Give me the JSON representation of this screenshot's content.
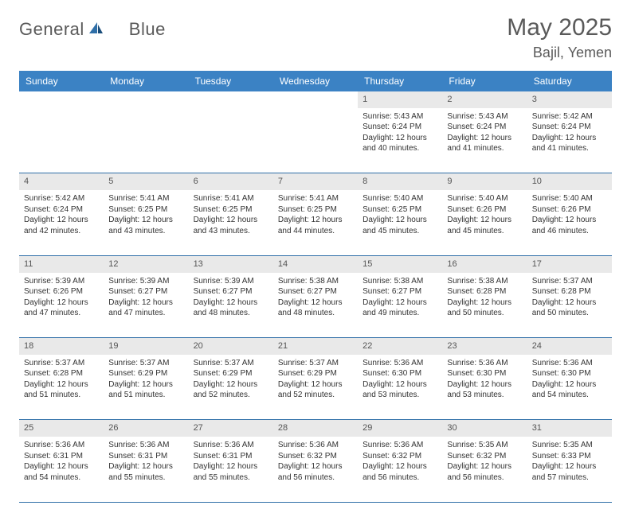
{
  "logo": {
    "text1": "General",
    "text2": "Blue"
  },
  "title": "May 2025",
  "location": "Bajil, Yemen",
  "colors": {
    "header_bg": "#3b82c4",
    "header_text": "#ffffff",
    "daynum_bg": "#e9e9e9",
    "row_border": "#2f6fa8",
    "body_text": "#333333",
    "title_text": "#5a5a5a"
  },
  "weekdays": [
    "Sunday",
    "Monday",
    "Tuesday",
    "Wednesday",
    "Thursday",
    "Friday",
    "Saturday"
  ],
  "weeks": [
    {
      "nums": [
        "",
        "",
        "",
        "",
        "1",
        "2",
        "3"
      ],
      "cells": [
        null,
        null,
        null,
        null,
        {
          "sunrise": "Sunrise: 5:43 AM",
          "sunset": "Sunset: 6:24 PM",
          "day1": "Daylight: 12 hours",
          "day2": "and 40 minutes."
        },
        {
          "sunrise": "Sunrise: 5:43 AM",
          "sunset": "Sunset: 6:24 PM",
          "day1": "Daylight: 12 hours",
          "day2": "and 41 minutes."
        },
        {
          "sunrise": "Sunrise: 5:42 AM",
          "sunset": "Sunset: 6:24 PM",
          "day1": "Daylight: 12 hours",
          "day2": "and 41 minutes."
        }
      ]
    },
    {
      "nums": [
        "4",
        "5",
        "6",
        "7",
        "8",
        "9",
        "10"
      ],
      "cells": [
        {
          "sunrise": "Sunrise: 5:42 AM",
          "sunset": "Sunset: 6:24 PM",
          "day1": "Daylight: 12 hours",
          "day2": "and 42 minutes."
        },
        {
          "sunrise": "Sunrise: 5:41 AM",
          "sunset": "Sunset: 6:25 PM",
          "day1": "Daylight: 12 hours",
          "day2": "and 43 minutes."
        },
        {
          "sunrise": "Sunrise: 5:41 AM",
          "sunset": "Sunset: 6:25 PM",
          "day1": "Daylight: 12 hours",
          "day2": "and 43 minutes."
        },
        {
          "sunrise": "Sunrise: 5:41 AM",
          "sunset": "Sunset: 6:25 PM",
          "day1": "Daylight: 12 hours",
          "day2": "and 44 minutes."
        },
        {
          "sunrise": "Sunrise: 5:40 AM",
          "sunset": "Sunset: 6:25 PM",
          "day1": "Daylight: 12 hours",
          "day2": "and 45 minutes."
        },
        {
          "sunrise": "Sunrise: 5:40 AM",
          "sunset": "Sunset: 6:26 PM",
          "day1": "Daylight: 12 hours",
          "day2": "and 45 minutes."
        },
        {
          "sunrise": "Sunrise: 5:40 AM",
          "sunset": "Sunset: 6:26 PM",
          "day1": "Daylight: 12 hours",
          "day2": "and 46 minutes."
        }
      ]
    },
    {
      "nums": [
        "11",
        "12",
        "13",
        "14",
        "15",
        "16",
        "17"
      ],
      "cells": [
        {
          "sunrise": "Sunrise: 5:39 AM",
          "sunset": "Sunset: 6:26 PM",
          "day1": "Daylight: 12 hours",
          "day2": "and 47 minutes."
        },
        {
          "sunrise": "Sunrise: 5:39 AM",
          "sunset": "Sunset: 6:27 PM",
          "day1": "Daylight: 12 hours",
          "day2": "and 47 minutes."
        },
        {
          "sunrise": "Sunrise: 5:39 AM",
          "sunset": "Sunset: 6:27 PM",
          "day1": "Daylight: 12 hours",
          "day2": "and 48 minutes."
        },
        {
          "sunrise": "Sunrise: 5:38 AM",
          "sunset": "Sunset: 6:27 PM",
          "day1": "Daylight: 12 hours",
          "day2": "and 48 minutes."
        },
        {
          "sunrise": "Sunrise: 5:38 AM",
          "sunset": "Sunset: 6:27 PM",
          "day1": "Daylight: 12 hours",
          "day2": "and 49 minutes."
        },
        {
          "sunrise": "Sunrise: 5:38 AM",
          "sunset": "Sunset: 6:28 PM",
          "day1": "Daylight: 12 hours",
          "day2": "and 50 minutes."
        },
        {
          "sunrise": "Sunrise: 5:37 AM",
          "sunset": "Sunset: 6:28 PM",
          "day1": "Daylight: 12 hours",
          "day2": "and 50 minutes."
        }
      ]
    },
    {
      "nums": [
        "18",
        "19",
        "20",
        "21",
        "22",
        "23",
        "24"
      ],
      "cells": [
        {
          "sunrise": "Sunrise: 5:37 AM",
          "sunset": "Sunset: 6:28 PM",
          "day1": "Daylight: 12 hours",
          "day2": "and 51 minutes."
        },
        {
          "sunrise": "Sunrise: 5:37 AM",
          "sunset": "Sunset: 6:29 PM",
          "day1": "Daylight: 12 hours",
          "day2": "and 51 minutes."
        },
        {
          "sunrise": "Sunrise: 5:37 AM",
          "sunset": "Sunset: 6:29 PM",
          "day1": "Daylight: 12 hours",
          "day2": "and 52 minutes."
        },
        {
          "sunrise": "Sunrise: 5:37 AM",
          "sunset": "Sunset: 6:29 PM",
          "day1": "Daylight: 12 hours",
          "day2": "and 52 minutes."
        },
        {
          "sunrise": "Sunrise: 5:36 AM",
          "sunset": "Sunset: 6:30 PM",
          "day1": "Daylight: 12 hours",
          "day2": "and 53 minutes."
        },
        {
          "sunrise": "Sunrise: 5:36 AM",
          "sunset": "Sunset: 6:30 PM",
          "day1": "Daylight: 12 hours",
          "day2": "and 53 minutes."
        },
        {
          "sunrise": "Sunrise: 5:36 AM",
          "sunset": "Sunset: 6:30 PM",
          "day1": "Daylight: 12 hours",
          "day2": "and 54 minutes."
        }
      ]
    },
    {
      "nums": [
        "25",
        "26",
        "27",
        "28",
        "29",
        "30",
        "31"
      ],
      "cells": [
        {
          "sunrise": "Sunrise: 5:36 AM",
          "sunset": "Sunset: 6:31 PM",
          "day1": "Daylight: 12 hours",
          "day2": "and 54 minutes."
        },
        {
          "sunrise": "Sunrise: 5:36 AM",
          "sunset": "Sunset: 6:31 PM",
          "day1": "Daylight: 12 hours",
          "day2": "and 55 minutes."
        },
        {
          "sunrise": "Sunrise: 5:36 AM",
          "sunset": "Sunset: 6:31 PM",
          "day1": "Daylight: 12 hours",
          "day2": "and 55 minutes."
        },
        {
          "sunrise": "Sunrise: 5:36 AM",
          "sunset": "Sunset: 6:32 PM",
          "day1": "Daylight: 12 hours",
          "day2": "and 56 minutes."
        },
        {
          "sunrise": "Sunrise: 5:36 AM",
          "sunset": "Sunset: 6:32 PM",
          "day1": "Daylight: 12 hours",
          "day2": "and 56 minutes."
        },
        {
          "sunrise": "Sunrise: 5:35 AM",
          "sunset": "Sunset: 6:32 PM",
          "day1": "Daylight: 12 hours",
          "day2": "and 56 minutes."
        },
        {
          "sunrise": "Sunrise: 5:35 AM",
          "sunset": "Sunset: 6:33 PM",
          "day1": "Daylight: 12 hours",
          "day2": "and 57 minutes."
        }
      ]
    }
  ]
}
